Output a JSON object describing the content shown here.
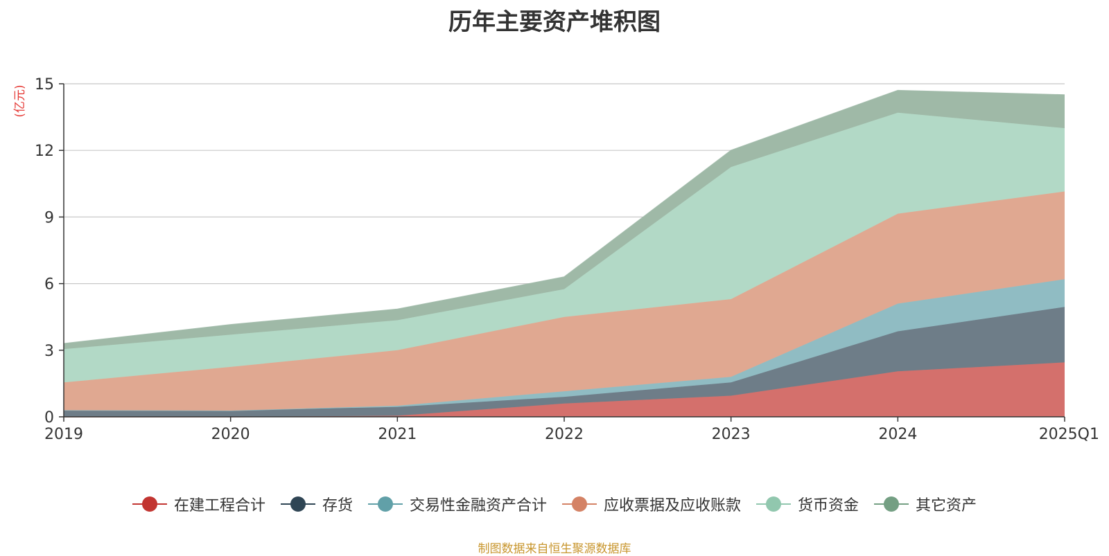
{
  "title": "历年主要资产堆积图",
  "source_note": "制图数据来自恒生聚源数据库",
  "chart_data": {
    "type": "area",
    "stacked": true,
    "title": "历年主要资产堆积图",
    "ylabel": "(亿元)",
    "xlabel": "",
    "categories": [
      "2019",
      "2020",
      "2021",
      "2022",
      "2023",
      "2024",
      "2025Q1"
    ],
    "ylim": [
      0,
      15
    ],
    "yticks": [
      0,
      3,
      6,
      9,
      12,
      15
    ],
    "grid": true,
    "legend_position": "bottom",
    "series": [
      {
        "name": "在建工程合计",
        "color": "#c23531",
        "fill": "#d4706c",
        "values": [
          0.0,
          0.0,
          0.05,
          0.6,
          0.95,
          2.05,
          2.45
        ]
      },
      {
        "name": "存货",
        "color": "#2f4554",
        "fill": "#6e7d88",
        "values": [
          0.3,
          0.28,
          0.4,
          0.3,
          0.6,
          1.8,
          2.5
        ]
      },
      {
        "name": "交易性金融资产合计",
        "color": "#61a0a8",
        "fill": "#90bcc3",
        "values": [
          0.0,
          0.0,
          0.05,
          0.25,
          0.25,
          1.25,
          1.25
        ]
      },
      {
        "name": "应收票据及应收账款",
        "color": "#d48265",
        "fill": "#e0a891",
        "values": [
          1.25,
          1.97,
          2.5,
          3.35,
          3.5,
          4.05,
          3.95
        ]
      },
      {
        "name": "货币资金",
        "color": "#91c7ae",
        "fill": "#b2d9c6",
        "values": [
          1.5,
          1.45,
          1.35,
          1.25,
          5.95,
          4.55,
          2.85
        ]
      },
      {
        "name": "其它资产",
        "color": "#749f83",
        "fill": "#9fb9a7",
        "values": [
          0.25,
          0.45,
          0.5,
          0.55,
          0.75,
          1.0,
          1.5
        ]
      }
    ]
  }
}
